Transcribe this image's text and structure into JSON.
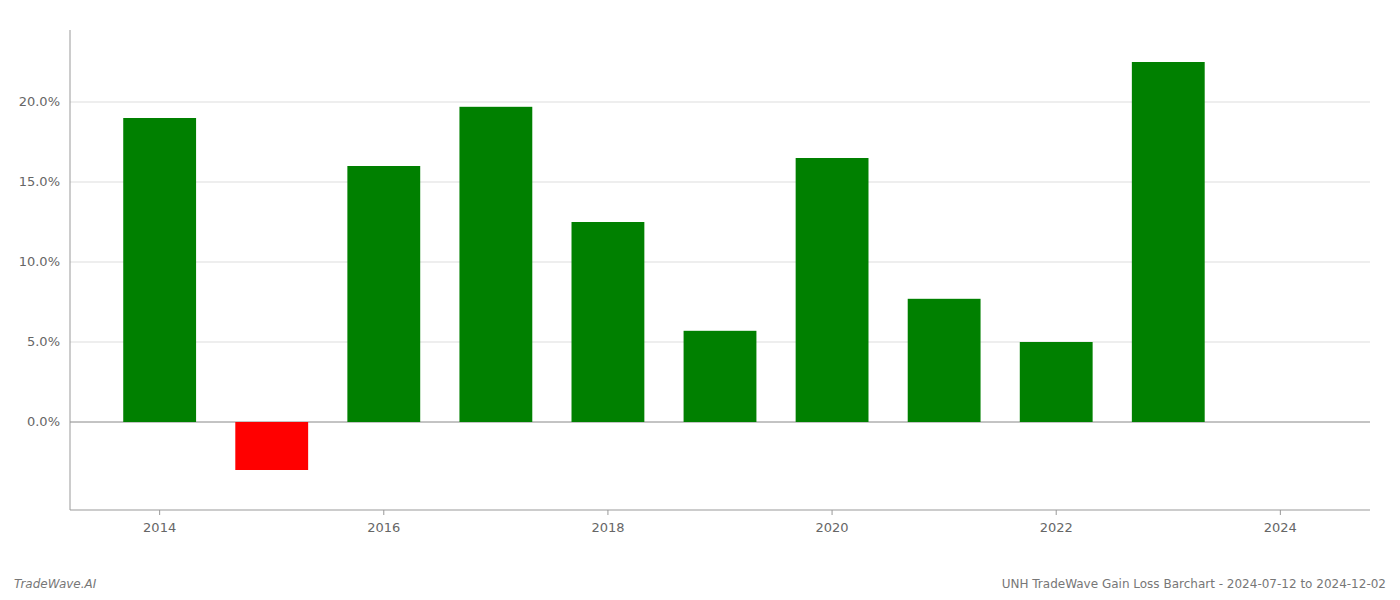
{
  "chart_data": {
    "type": "bar",
    "x": [
      2014,
      2015,
      2016,
      2017,
      2018,
      2019,
      2020,
      2021,
      2022,
      2023
    ],
    "values": [
      0.19,
      -0.03,
      0.16,
      0.197,
      0.125,
      0.057,
      0.165,
      0.077,
      0.05,
      0.225
    ],
    "colors": [
      "#008000",
      "#ff0000",
      "#008000",
      "#008000",
      "#008000",
      "#008000",
      "#008000",
      "#008000",
      "#008000",
      "#008000"
    ],
    "xlim": [
      2013.2,
      2024.8
    ],
    "xticks": [
      2014,
      2016,
      2018,
      2020,
      2022,
      2024
    ],
    "ylim": [
      -0.055,
      0.245
    ],
    "yticks": [
      {
        "value": 0.0,
        "label": "0.0%"
      },
      {
        "value": 0.05,
        "label": "5.0%"
      },
      {
        "value": 0.1,
        "label": "10.0%"
      },
      {
        "value": 0.15,
        "label": "15.0%"
      },
      {
        "value": 0.2,
        "label": "20.0%"
      }
    ],
    "grid": true,
    "annotations": [
      "TradeWave.AI",
      "UNH TradeWave Gain Loss Barchart - 2024-07-12 to 2024-12-02"
    ]
  }
}
